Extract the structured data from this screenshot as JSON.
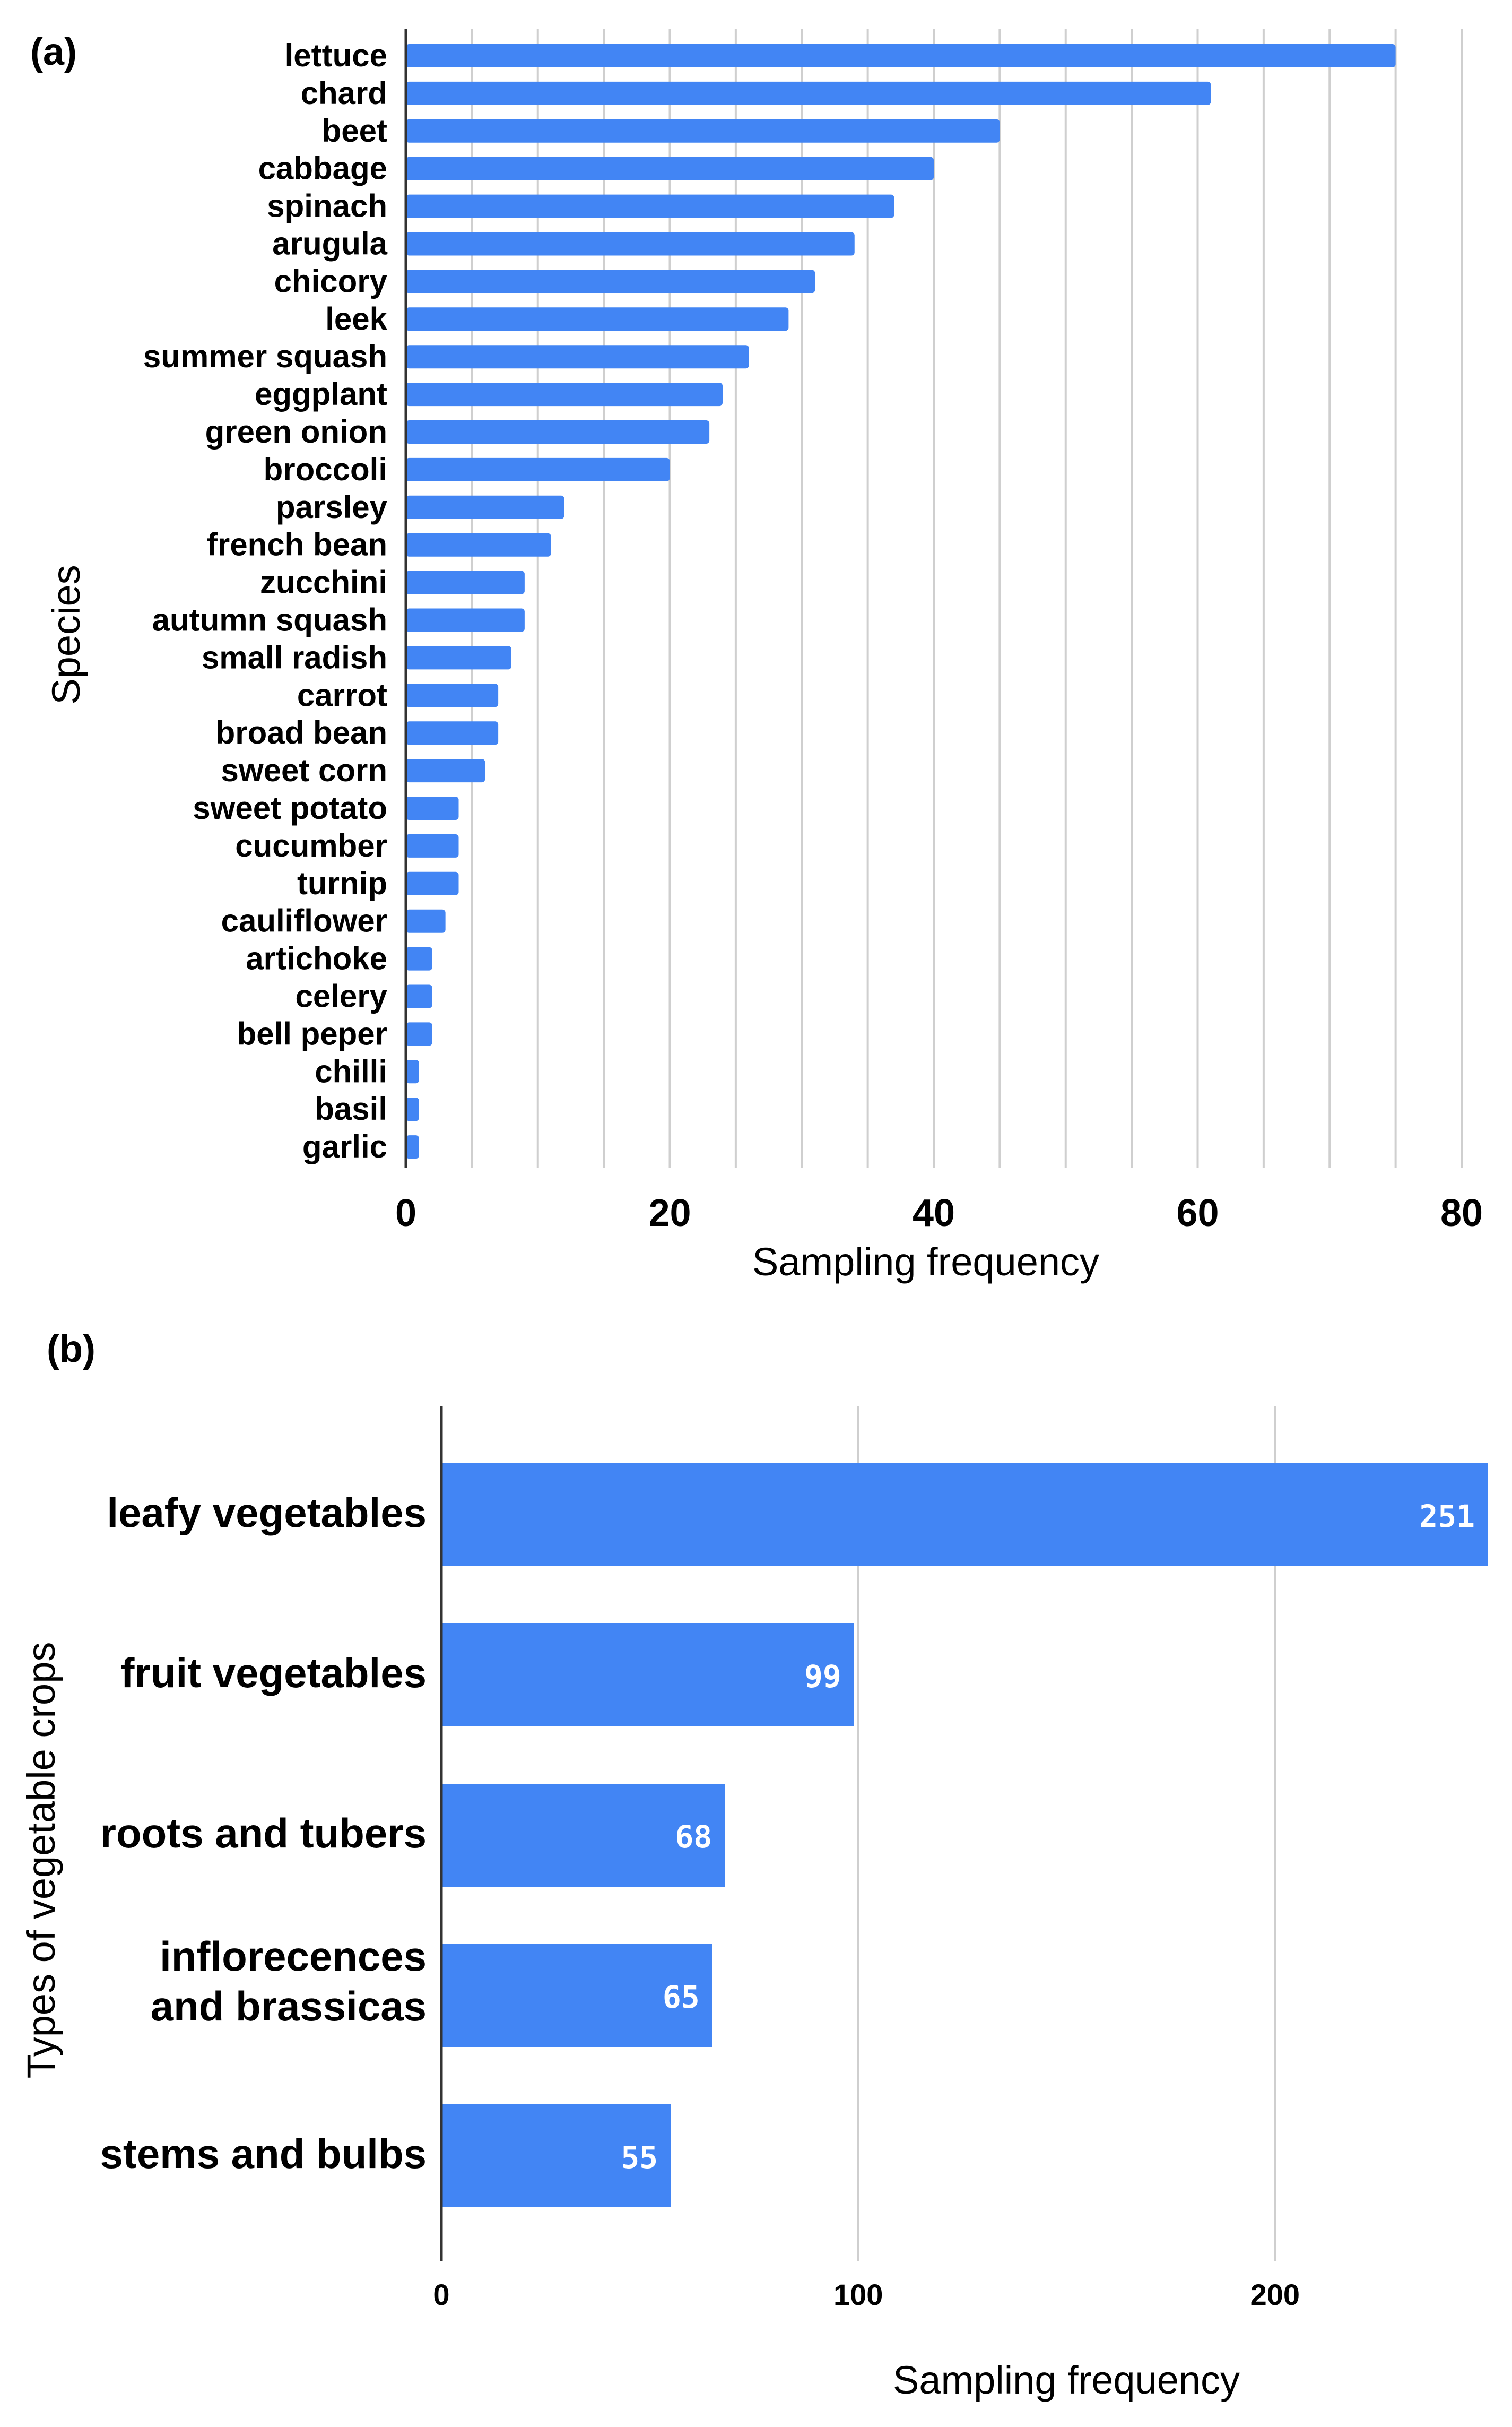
{
  "colors": {
    "bar": "#4285f4",
    "grid": "#cfcfcf",
    "axis": "#333333"
  },
  "chart_data": [
    {
      "panel": "(a)",
      "type": "bar",
      "orientation": "horizontal",
      "categories": [
        "lettuce",
        "chard",
        "beet",
        "cabbage",
        "spinach",
        "arugula",
        "chicory",
        "leek",
        "summer squash",
        "eggplant",
        "green onion",
        "broccoli",
        "parsley",
        "french bean",
        "zucchini",
        "autumn squash",
        "small radish",
        "carrot",
        "broad bean",
        "sweet corn",
        "sweet potato",
        "cucumber",
        "turnip",
        "cauliflower",
        "artichoke",
        "celery",
        "bell peper",
        "chilli",
        "basil",
        "garlic"
      ],
      "values": [
        75,
        61,
        45,
        40,
        37,
        34,
        31,
        29,
        26,
        24,
        23,
        20,
        12,
        11,
        9,
        9,
        8,
        7,
        7,
        6,
        4,
        4,
        4,
        3,
        2,
        2,
        2,
        1,
        1,
        1
      ],
      "xlabel": "Sampling frequency",
      "ylabel": "Species",
      "xlim": [
        0,
        80
      ],
      "xticks": [
        "0",
        "20",
        "40",
        "60",
        "80"
      ],
      "grid": true
    },
    {
      "panel": "(b)",
      "type": "bar",
      "orientation": "horizontal",
      "categories": [
        [
          "leafy vegetables"
        ],
        [
          "fruit vegetables"
        ],
        [
          "roots and tubers"
        ],
        [
          "inflorecences",
          "and brassicas"
        ],
        [
          "stems and bulbs"
        ]
      ],
      "values": [
        251,
        99,
        68,
        65,
        55
      ],
      "data_labels": [
        "251",
        "99",
        "68",
        "65",
        "55"
      ],
      "xlabel": "Sampling frequency",
      "ylabel": "Types of vegetable crops",
      "xlim": [
        0,
        251
      ],
      "xticks": [
        "0",
        "100",
        "200"
      ],
      "grid": true
    }
  ]
}
